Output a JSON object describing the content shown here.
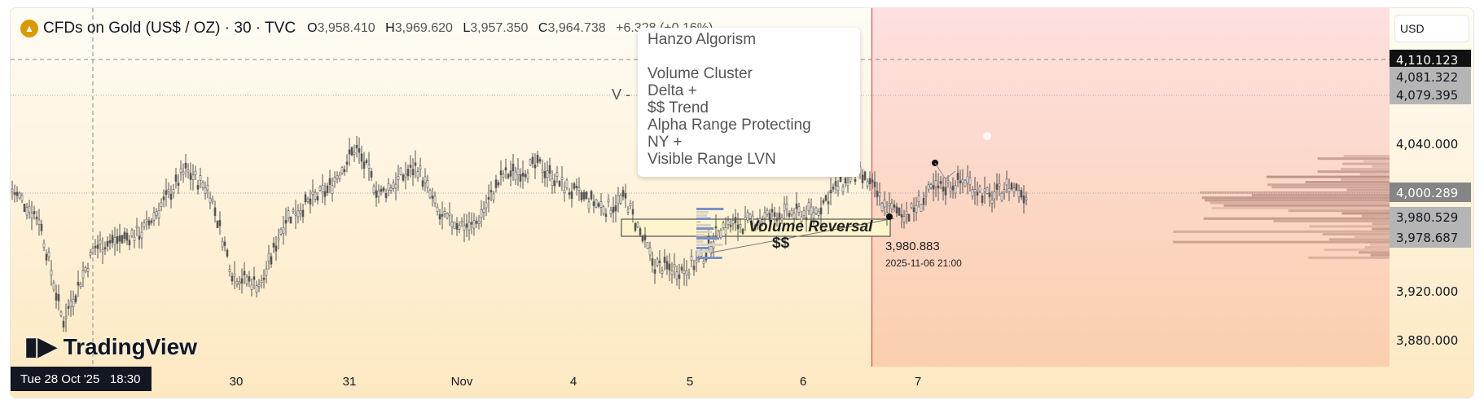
{
  "header": {
    "symbol": "CFDs on Gold (US$ / OZ) · 30 · TVC",
    "open_label": "O",
    "open": "3,958.410",
    "high_label": "H",
    "high": "3,969.620",
    "low_label": "L",
    "low": "3,957.350",
    "close_label": "C",
    "close": "3,964.738",
    "change": "+6.328 (+0.16%)"
  },
  "tooltip": {
    "lines": [
      "Hanzo Algorism",
      "",
      "Volume Cluster",
      "Delta +",
      "$$ Trend",
      "Alpha Range Protecting",
      "NY +",
      "Visible Range LVN"
    ]
  },
  "annotations": {
    "v_label": "V -",
    "volume_reversal": "Volume Reversal",
    "dollars": "$$",
    "point_price": "3,980.883",
    "point_time": "2025-11-06 21:00"
  },
  "price_axis": {
    "currency": "USD",
    "labels": [
      "4,110.123",
      "4,081.322",
      "4,079.395",
      "4,040.000",
      "4,000.289",
      "3,980.529",
      "3,978.687",
      "3,920.000",
      "3,880.000"
    ]
  },
  "time_axis": {
    "crosshair": "Tue 28 Oct '25",
    "crosshair_time": "18:30",
    "labels": [
      "30",
      "31",
      "Nov",
      "4",
      "5",
      "6",
      "7"
    ]
  },
  "brand": "TradingView",
  "colors": {
    "gold": "#d79a00",
    "session_line": "#e0303a"
  }
}
